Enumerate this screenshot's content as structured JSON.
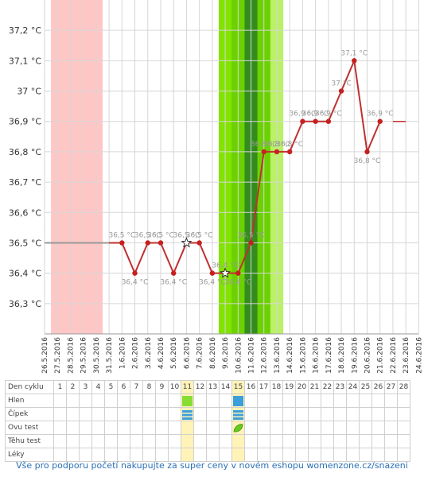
{
  "chart_data": {
    "type": "line",
    "dates": [
      "26.5.2016",
      "27.5.2016",
      "28.5.2016",
      "29.5.2016",
      "30.5.2016",
      "31.5.2016",
      "1.6.2016",
      "2.6.2016",
      "3.6.2016",
      "4.6.2016",
      "5.6.2016",
      "6.6.2016",
      "7.6.2016",
      "8.6.2016",
      "9.6.2016",
      "10.6.2016",
      "11.6.2016",
      "12.6.2016",
      "13.6.2016",
      "14.6.2016",
      "15.6.2016",
      "16.6.2016",
      "17.6.2016",
      "18.6.2016",
      "19.6.2016",
      "20.6.2016",
      "21.6.2016",
      "22.6.2016",
      "23.6.2016",
      "24.6.2016"
    ],
    "ylim": [
      36.2,
      37.3
    ],
    "y_ticks": [
      "36,3 °C",
      "36,4 °C",
      "36,5 °C",
      "36,6 °C",
      "36,7 °C",
      "36,8 °C",
      "36,9 °C",
      "37 °C",
      "37,1 °C",
      "37,2 °C"
    ],
    "y_tick_values": [
      36.3,
      36.4,
      36.5,
      36.6,
      36.7,
      36.8,
      36.9,
      37.0,
      37.1,
      37.2
    ],
    "baseline": {
      "value": 36.5,
      "from": "26.5.2016",
      "to": "31.5.2016"
    },
    "tail": {
      "value": 36.9,
      "from": "22.6.2016",
      "to": "23.6.2016"
    },
    "points": [
      {
        "date": "1.6.2016",
        "value": 36.5,
        "label": "36,5 °C",
        "marker": "dot"
      },
      {
        "date": "2.6.2016",
        "value": 36.4,
        "label": "36,4 °C",
        "marker": "dot"
      },
      {
        "date": "3.6.2016",
        "value": 36.5,
        "label": "36,5 °C",
        "marker": "dot"
      },
      {
        "date": "4.6.2016",
        "value": 36.5,
        "label": "36,5 °C",
        "marker": "dot"
      },
      {
        "date": "5.6.2016",
        "value": 36.4,
        "label": "36,4 °C",
        "marker": "dot"
      },
      {
        "date": "6.6.2016",
        "value": 36.5,
        "label": "36,5 °C",
        "marker": "star"
      },
      {
        "date": "7.6.2016",
        "value": 36.5,
        "label": "36,5 °C",
        "marker": "dot"
      },
      {
        "date": "8.6.2016",
        "value": 36.4,
        "label": "36,4 °C",
        "marker": "dot"
      },
      {
        "date": "9.6.2016",
        "value": 36.4,
        "label": "36,4 °C",
        "marker": "star"
      },
      {
        "date": "10.6.2016",
        "value": 36.4,
        "label": "36,4 °C",
        "marker": "dot"
      },
      {
        "date": "11.6.2016",
        "value": 36.5,
        "label": "36,5 °C",
        "marker": "dot"
      },
      {
        "date": "12.6.2016",
        "value": 36.8,
        "label": "36,8 °C",
        "marker": "dot"
      },
      {
        "date": "13.6.2016",
        "value": 36.8,
        "label": "36,8 °C",
        "marker": "dot"
      },
      {
        "date": "14.6.2016",
        "value": 36.8,
        "label": "36,8 °C",
        "marker": "dot"
      },
      {
        "date": "15.6.2016",
        "value": 36.9,
        "label": "36,9 °C",
        "marker": "dot"
      },
      {
        "date": "16.6.2016",
        "value": 36.9,
        "label": "36,9 °C",
        "marker": "dot"
      },
      {
        "date": "17.6.2016",
        "value": 36.9,
        "label": "36,9 °C",
        "marker": "dot"
      },
      {
        "date": "18.6.2016",
        "value": 37.0,
        "label": "37 °C",
        "marker": "dot"
      },
      {
        "date": "19.6.2016",
        "value": 37.1,
        "label": "37,1 °C",
        "marker": "dot"
      },
      {
        "date": "20.6.2016",
        "value": 36.8,
        "label": "36,8 °C",
        "marker": "dot"
      },
      {
        "date": "21.6.2016",
        "value": 36.9,
        "label": "36,9 °C",
        "marker": "dot"
      }
    ],
    "menstruation_band": {
      "from": "26.5.2016",
      "to": "30.5.2016",
      "color": "#ffc6c6"
    },
    "fertile_band": {
      "from": "8.6.2016",
      "to": "12.6.2016",
      "color": "#77dd00"
    },
    "ovulation_band": {
      "from": "10.6.2016",
      "to": "11.6.2016",
      "color": "#338c1e"
    },
    "line_color": "#c03030",
    "dot_color": "#c62020",
    "grid": true
  },
  "cycle_table": {
    "header_label": "Den cyklu",
    "days": [
      "1",
      "2",
      "3",
      "4",
      "5",
      "6",
      "7",
      "8",
      "9",
      "10",
      "11",
      "12",
      "13",
      "14",
      "15",
      "16",
      "17",
      "18",
      "19",
      "20",
      "21",
      "22",
      "23",
      "24",
      "25",
      "26",
      "27",
      "28"
    ],
    "highlighted_days": [
      "11",
      "15"
    ],
    "rows": [
      {
        "label": "Hlen",
        "markers": [
          {
            "day": "11",
            "kind": "mucus-green"
          },
          {
            "day": "15",
            "kind": "mucus-blue"
          }
        ]
      },
      {
        "label": "Čípek",
        "markers": [
          {
            "day": "11",
            "kind": "cervix-blue"
          },
          {
            "day": "15",
            "kind": "cervix-blue"
          }
        ]
      },
      {
        "label": "Ovu test",
        "markers": [
          {
            "day": "15",
            "kind": "ovu-leaf"
          }
        ]
      },
      {
        "label": "Těhu test",
        "markers": []
      },
      {
        "label": "Léky",
        "markers": []
      }
    ]
  },
  "footer": "Vše pro podporu početí nakupujte za super ceny v novém eshopu womenzone.cz/snazeni"
}
